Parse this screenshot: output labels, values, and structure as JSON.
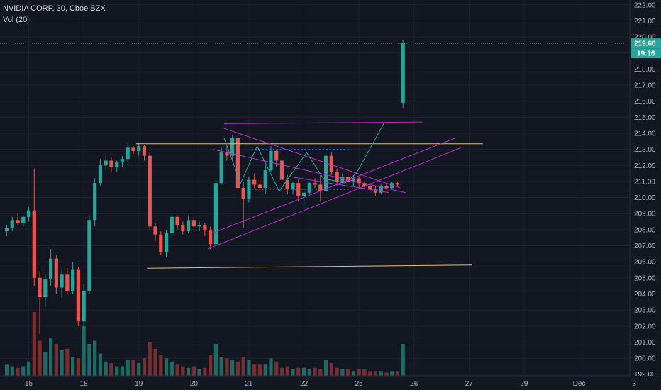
{
  "header": {
    "symbol_line": "NVIDIA CORP, 30, Cboe BZX",
    "volume_line": "Vol (20)"
  },
  "price_tags": {
    "last_price": "219.60",
    "countdown": "19:16"
  },
  "colors": {
    "background": "#131722",
    "up": "#26a69a",
    "down": "#ef5350",
    "volume_up": "#1e6b66",
    "volume_down": "#7a2e31",
    "grid": "#1e2230",
    "axis_text": "#b2b5be",
    "trendline_magenta": "#c026d3",
    "trendline_tan": "#e0c27c",
    "zigzag": "#26a69a",
    "dotted_blue": "#2962ff",
    "last_price_tag": "#26a69a"
  },
  "chart_data": {
    "type": "candlestick",
    "y_axis": {
      "ylim": [
        198.9,
        222.3
      ],
      "ticks": [
        "199.00",
        "200.00",
        "201.00",
        "202.00",
        "203.00",
        "204.00",
        "205.00",
        "206.00",
        "207.00",
        "208.00",
        "209.00",
        "210.00",
        "211.00",
        "212.00",
        "213.00",
        "214.00",
        "215.00",
        "216.00",
        "217.00",
        "218.00",
        "219.00",
        "220.00",
        "221.00",
        "222.00"
      ],
      "tick_values": [
        199,
        200,
        201,
        202,
        203,
        204,
        205,
        206,
        207,
        208,
        209,
        210,
        211,
        212,
        213,
        214,
        215,
        216,
        217,
        218,
        219,
        220,
        221,
        222
      ]
    },
    "x_axis": {
      "ticks": [
        "15",
        "18",
        "19",
        "20",
        "21",
        "22",
        "25",
        "26",
        "27",
        "29",
        "Dec",
        "3"
      ],
      "tick_bar_index": [
        4,
        14,
        24,
        34,
        44,
        54,
        64,
        74,
        84,
        94,
        104,
        114
      ]
    },
    "candles": [
      [
        207.9,
        208.3,
        207.6,
        208.1
      ],
      [
        208.1,
        208.8,
        207.9,
        208.6
      ],
      [
        208.6,
        209.0,
        208.3,
        208.4
      ],
      [
        208.4,
        208.9,
        208.2,
        208.8
      ],
      [
        208.8,
        209.4,
        208.5,
        209.2
      ],
      [
        209.2,
        211.8,
        204.5,
        205.0
      ],
      [
        205.0,
        205.4,
        201.5,
        203.8
      ],
      [
        203.8,
        205.2,
        203.2,
        204.9
      ],
      [
        204.9,
        206.8,
        204.5,
        206.2
      ],
      [
        206.2,
        206.4,
        204.0,
        204.4
      ],
      [
        204.4,
        205.5,
        203.8,
        205.2
      ],
      [
        205.2,
        205.6,
        204.0,
        204.2
      ],
      [
        204.2,
        206.0,
        204.0,
        205.5
      ],
      [
        205.5,
        205.7,
        202.0,
        202.3
      ],
      [
        202.3,
        204.6,
        201.8,
        204.2
      ],
      [
        204.2,
        208.9,
        204.0,
        208.6
      ],
      [
        208.6,
        211.2,
        208.2,
        210.9
      ],
      [
        210.9,
        212.4,
        210.7,
        212.0
      ],
      [
        212.0,
        212.6,
        211.7,
        212.3
      ],
      [
        212.3,
        212.5,
        211.6,
        211.9
      ],
      [
        211.9,
        212.3,
        211.6,
        212.2
      ],
      [
        212.2,
        212.6,
        211.9,
        212.4
      ],
      [
        212.4,
        213.4,
        212.2,
        213.1
      ],
      [
        213.1,
        213.2,
        212.7,
        212.9
      ],
      [
        212.9,
        213.4,
        212.6,
        213.2
      ],
      [
        213.2,
        213.3,
        212.3,
        212.6
      ],
      [
        212.6,
        212.8,
        208.0,
        208.2
      ],
      [
        208.2,
        208.4,
        207.3,
        207.7
      ],
      [
        207.7,
        207.9,
        206.4,
        206.6
      ],
      [
        206.6,
        208.0,
        206.3,
        207.8
      ],
      [
        207.8,
        208.9,
        207.6,
        208.8
      ],
      [
        208.8,
        208.9,
        208.0,
        208.3
      ],
      [
        208.3,
        208.5,
        207.7,
        207.9
      ],
      [
        207.9,
        208.9,
        207.8,
        208.6
      ],
      [
        208.6,
        208.8,
        208.0,
        208.2
      ],
      [
        208.2,
        208.5,
        207.9,
        208.3
      ],
      [
        208.3,
        208.4,
        207.6,
        208.0
      ],
      [
        208.0,
        208.2,
        206.8,
        207.1
      ],
      [
        207.1,
        211.2,
        206.9,
        210.9
      ],
      [
        210.9,
        213.1,
        210.8,
        212.8
      ],
      [
        212.8,
        213.3,
        212.3,
        212.6
      ],
      [
        212.6,
        213.9,
        212.3,
        213.7
      ],
      [
        213.7,
        213.8,
        210.2,
        210.6
      ],
      [
        210.6,
        211.0,
        208.1,
        209.9
      ],
      [
        209.9,
        211.3,
        209.7,
        211.1
      ],
      [
        211.1,
        211.5,
        210.6,
        210.8
      ],
      [
        210.8,
        211.2,
        210.4,
        210.6
      ],
      [
        210.6,
        212.0,
        210.2,
        211.7
      ],
      [
        211.7,
        213.2,
        211.6,
        212.9
      ],
      [
        212.9,
        213.0,
        211.9,
        212.3
      ],
      [
        212.3,
        212.6,
        210.9,
        211.1
      ],
      [
        211.1,
        211.4,
        210.2,
        210.5
      ],
      [
        210.5,
        211.0,
        210.2,
        210.9
      ],
      [
        210.9,
        211.1,
        209.8,
        210.1
      ],
      [
        210.1,
        210.5,
        209.5,
        210.3
      ],
      [
        210.3,
        211.0,
        210.2,
        210.9
      ],
      [
        210.9,
        211.2,
        210.6,
        210.8
      ],
      [
        210.8,
        211.4,
        209.8,
        210.4
      ],
      [
        210.4,
        212.9,
        210.3,
        212.6
      ],
      [
        212.6,
        212.8,
        211.4,
        211.6
      ],
      [
        211.6,
        211.8,
        210.7,
        211.0
      ],
      [
        211.0,
        211.5,
        210.8,
        211.3
      ],
      [
        211.3,
        211.6,
        210.9,
        211.0
      ],
      [
        211.0,
        211.4,
        210.7,
        211.2
      ],
      [
        211.2,
        211.3,
        210.6,
        210.9
      ],
      [
        210.9,
        211.0,
        210.5,
        210.7
      ],
      [
        210.7,
        210.9,
        210.3,
        210.5
      ],
      [
        210.5,
        210.7,
        210.1,
        210.3
      ],
      [
        210.3,
        210.8,
        210.2,
        210.7
      ],
      [
        210.7,
        210.9,
        210.5,
        210.6
      ],
      [
        210.6,
        211.0,
        210.5,
        210.9
      ],
      [
        210.9,
        211.0,
        210.7,
        210.8
      ],
      [
        215.9,
        219.8,
        215.6,
        219.6
      ]
    ],
    "volumes": [
      0.7,
      0.6,
      0.5,
      0.6,
      0.9,
      4.0,
      2.2,
      1.5,
      2.4,
      2.0,
      1.6,
      1.7,
      1.2,
      1.1,
      3.1,
      2.0,
      2.2,
      1.4,
      0.9,
      0.8,
      0.6,
      0.6,
      1.0,
      1.0,
      0.8,
      1.1,
      2.1,
      1.7,
      1.3,
      1.1,
      0.9,
      0.7,
      0.6,
      0.5,
      0.6,
      0.4,
      0.5,
      1.3,
      2.0,
      1.2,
      1.1,
      1.0,
      0.9,
      1.2,
      1.0,
      0.7,
      0.7,
      0.7,
      1.1,
      0.9,
      0.5,
      0.6,
      0.4,
      0.5,
      0.5,
      0.4,
      0.5,
      0.4,
      1.0,
      0.8,
      0.5,
      0.4,
      0.4,
      0.3,
      0.4,
      0.4,
      0.3,
      0.3,
      0.3,
      0.2,
      0.3,
      0.3,
      2.0
    ],
    "drawings": {
      "magenta_lines": [
        [
          [
            39.5,
            214.6
          ],
          [
            75.5,
            214.7
          ]
        ],
        [
          [
            39.5,
            214.3
          ],
          [
            71.5,
            210.6
          ]
        ],
        [
          [
            37.5,
            207.8
          ],
          [
            81.5,
            213.7
          ]
        ],
        [
          [
            36.5,
            206.8
          ],
          [
            82.5,
            213.1
          ]
        ],
        [
          [
            37.5,
            213.0
          ],
          [
            72.5,
            210.3
          ]
        ],
        [
          [
            51.5,
            211.3
          ],
          [
            69.5,
            210.3
          ]
        ]
      ],
      "tan_lines": [
        [
          [
            23.5,
            213.35
          ],
          [
            86.5,
            213.35
          ]
        ],
        [
          [
            25.5,
            205.6
          ],
          [
            84.5,
            205.8
          ]
        ]
      ],
      "zigzag": [
        [
          [
            39.5,
            213.7
          ],
          [
            42.5,
            210.9
          ],
          [
            45.5,
            213.2
          ],
          [
            49.5,
            210.4
          ],
          [
            54.5,
            212.8
          ],
          [
            57.5,
            211.2
          ],
          [
            61.5,
            210.9
          ],
          [
            63.5,
            211.5
          ],
          [
            68.5,
            214.6
          ]
        ]
      ],
      "dotted_blue": [
        [
          [
            44.5,
            213.0
          ],
          [
            62.5,
            213.0
          ]
        ],
        [
          [
            44.5,
            210.5
          ],
          [
            62.5,
            210.5
          ]
        ]
      ]
    }
  }
}
